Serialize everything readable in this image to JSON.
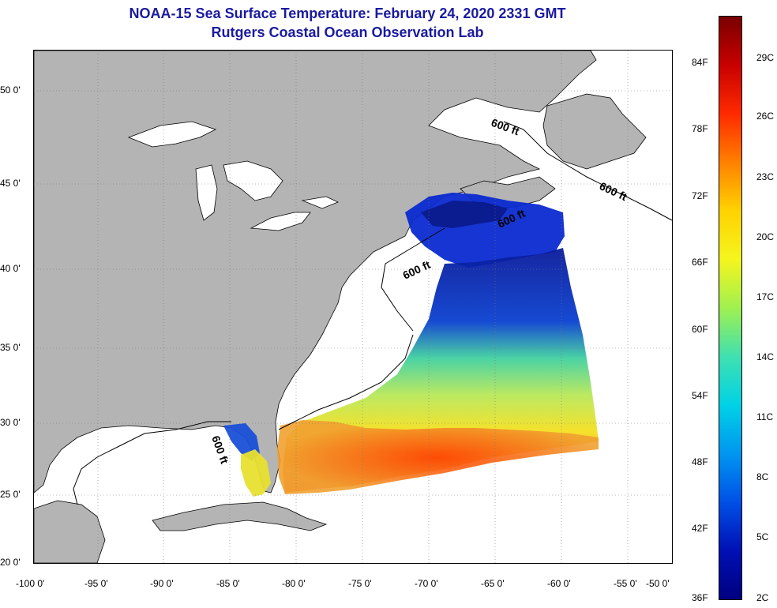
{
  "title": {
    "line1": "NOAA-15 Sea Surface Temperature:  February 24, 2020 2331 GMT",
    "line2": "Rutgers Coastal Ocean Observation Lab",
    "color": "#1a1aa0"
  },
  "map": {
    "background_ocean": "#ffffff",
    "land_color": "#b4b4b4",
    "contour_labels": [
      "600 ft",
      "600 ft",
      "600 ft",
      "600 ft",
      "600 ft"
    ],
    "lat_ticks": [
      "50 0'",
      "45 0'",
      "40 0'",
      "35 0'",
      "30 0'",
      "25 0'",
      "20 0'"
    ],
    "lon_ticks": [
      "-100 0'",
      "-95 0'",
      "-90 0'",
      "-85 0'",
      "-80 0'",
      "-75 0'",
      "-70 0'",
      "-65 0'",
      "-60 0'",
      "-55 0'",
      "-50 0'"
    ]
  },
  "colorbar": {
    "fahrenheit_labels": [
      "84F",
      "78F",
      "72F",
      "66F",
      "60F",
      "54F",
      "48F",
      "42F",
      "36F"
    ],
    "celsius_labels": [
      "29C",
      "26C",
      "23C",
      "20C",
      "17C",
      "14C",
      "11C",
      "8C",
      "5C",
      "2C"
    ],
    "colors": [
      "#7a0000",
      "#c80000",
      "#ff2a00",
      "#ff8000",
      "#ffd200",
      "#f5f51e",
      "#a0f050",
      "#40e0b0",
      "#00d2e6",
      "#0096f0",
      "#0050e6",
      "#0010b4",
      "#000080"
    ]
  }
}
